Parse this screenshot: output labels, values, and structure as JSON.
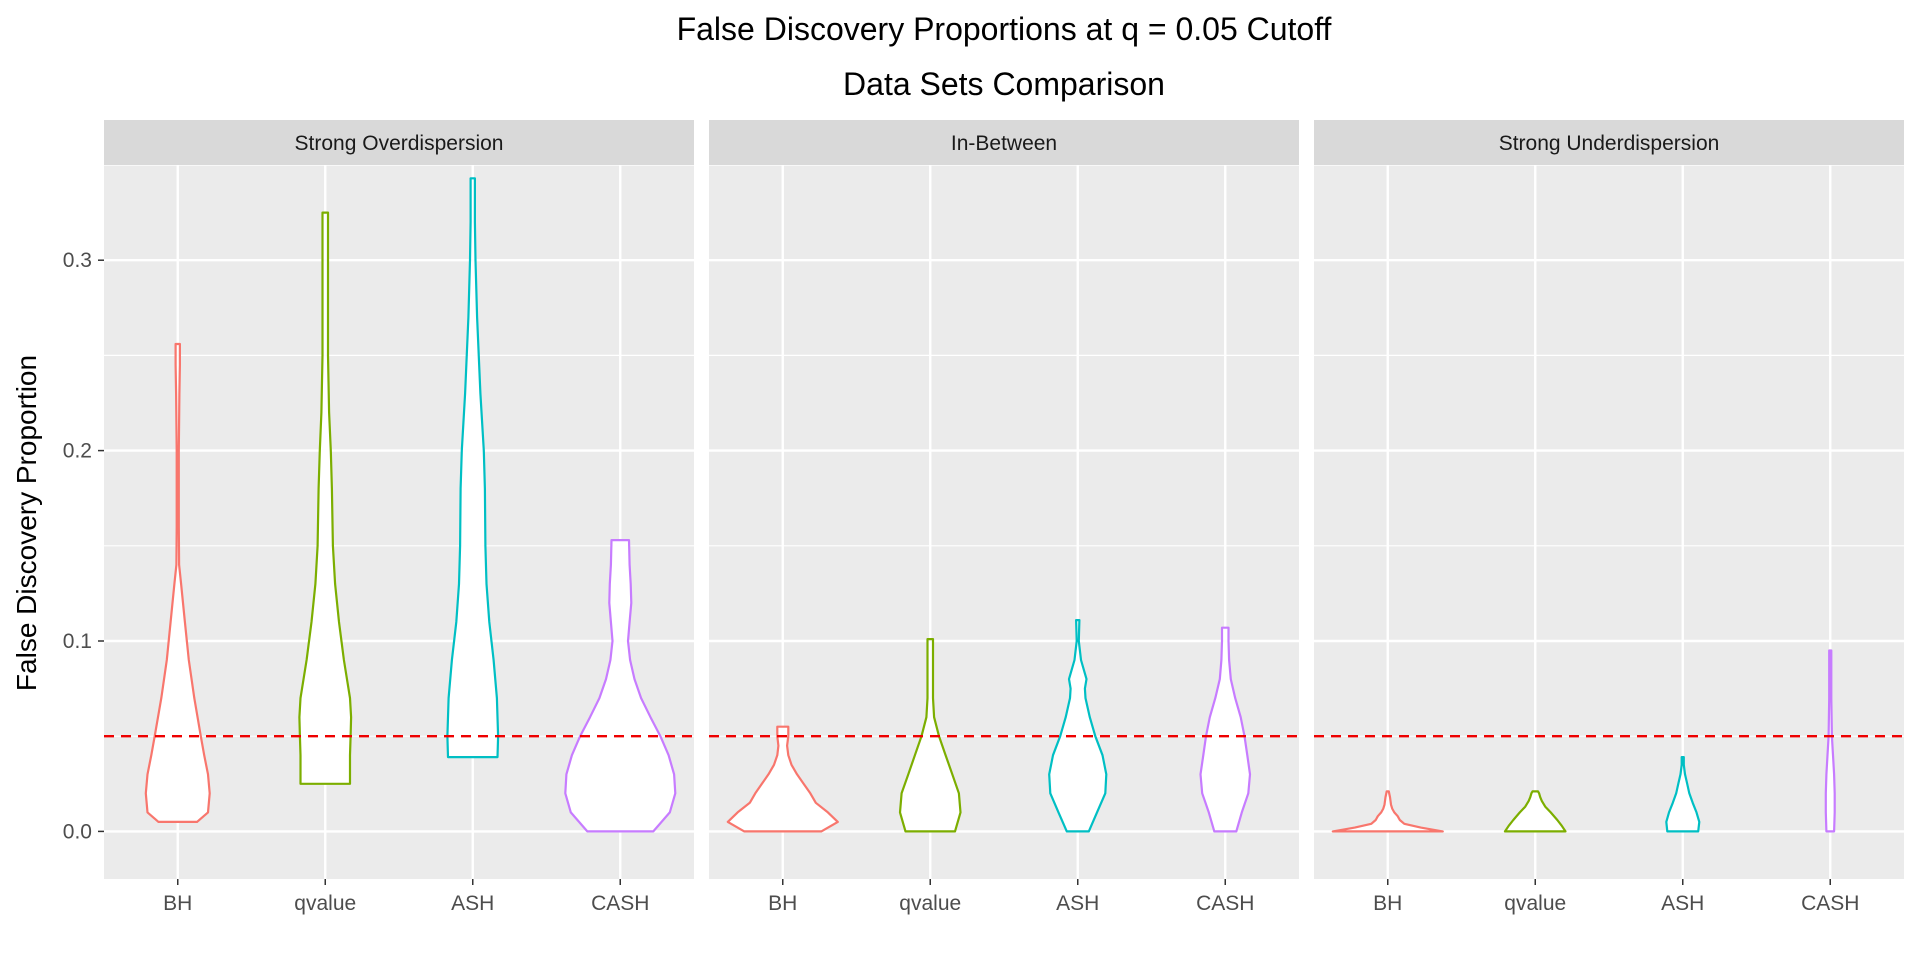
{
  "chart_data": {
    "type": "violin",
    "title": "False Discovery Proportions at q = 0.05 Cutoff",
    "subtitle": "Data Sets Comparison",
    "xlabel": "",
    "ylabel": "False Discovery Proportion",
    "ylim": [
      -0.025,
      0.35
    ],
    "y_ticks": [
      0.0,
      0.1,
      0.2,
      0.3
    ],
    "y_tick_labels": [
      "0.0",
      "0.1",
      "0.2",
      "0.3"
    ],
    "categories": [
      "BH",
      "qvalue",
      "ASH",
      "CASH"
    ],
    "reference_line": {
      "y": 0.05,
      "style": "dashed",
      "color": "#ee0000"
    },
    "grid": true,
    "legend": "none",
    "colors": {
      "BH": "#f8766d",
      "qvalue": "#7cae00",
      "ASH": "#00bfc4",
      "CASH": "#c77cff"
    },
    "panels": [
      {
        "name": "Strong Overdispersion",
        "series": [
          {
            "name": "BH",
            "min": 0.005,
            "max": 0.256,
            "profile": [
              [
                0.005,
                0.35
              ],
              [
                0.01,
                0.55
              ],
              [
                0.02,
                0.58
              ],
              [
                0.03,
                0.55
              ],
              [
                0.04,
                0.48
              ],
              [
                0.05,
                0.42
              ],
              [
                0.07,
                0.3
              ],
              [
                0.09,
                0.2
              ],
              [
                0.11,
                0.13
              ],
              [
                0.13,
                0.06
              ],
              [
                0.14,
                0.025
              ],
              [
                0.16,
                0.02
              ],
              [
                0.2,
                0.02
              ],
              [
                0.23,
                0.03
              ],
              [
                0.245,
                0.04
              ],
              [
                0.256,
                0.04
              ]
            ]
          },
          {
            "name": "qvalue",
            "min": 0.025,
            "max": 0.325,
            "profile": [
              [
                0.025,
                0.45
              ],
              [
                0.04,
                0.45
              ],
              [
                0.05,
                0.46
              ],
              [
                0.06,
                0.47
              ],
              [
                0.07,
                0.45
              ],
              [
                0.09,
                0.34
              ],
              [
                0.11,
                0.25
              ],
              [
                0.13,
                0.18
              ],
              [
                0.15,
                0.14
              ],
              [
                0.18,
                0.12
              ],
              [
                0.2,
                0.1
              ],
              [
                0.22,
                0.07
              ],
              [
                0.25,
                0.05
              ],
              [
                0.3,
                0.05
              ],
              [
                0.325,
                0.05
              ]
            ]
          },
          {
            "name": "ASH",
            "min": 0.039,
            "max": 0.343,
            "profile": [
              [
                0.039,
                0.45
              ],
              [
                0.05,
                0.46
              ],
              [
                0.07,
                0.44
              ],
              [
                0.09,
                0.38
              ],
              [
                0.11,
                0.3
              ],
              [
                0.13,
                0.25
              ],
              [
                0.15,
                0.23
              ],
              [
                0.18,
                0.22
              ],
              [
                0.2,
                0.2
              ],
              [
                0.23,
                0.14
              ],
              [
                0.27,
                0.08
              ],
              [
                0.3,
                0.05
              ],
              [
                0.32,
                0.04
              ],
              [
                0.343,
                0.04
              ]
            ]
          },
          {
            "name": "CASH",
            "min": 0.0,
            "max": 0.153,
            "profile": [
              [
                0.0,
                0.6
              ],
              [
                0.01,
                0.9
              ],
              [
                0.02,
                1.0
              ],
              [
                0.03,
                0.98
              ],
              [
                0.04,
                0.88
              ],
              [
                0.05,
                0.73
              ],
              [
                0.06,
                0.55
              ],
              [
                0.07,
                0.38
              ],
              [
                0.08,
                0.26
              ],
              [
                0.09,
                0.18
              ],
              [
                0.1,
                0.14
              ],
              [
                0.11,
                0.17
              ],
              [
                0.12,
                0.2
              ],
              [
                0.13,
                0.19
              ],
              [
                0.14,
                0.17
              ],
              [
                0.153,
                0.16
              ]
            ]
          }
        ]
      },
      {
        "name": "In-Between",
        "series": [
          {
            "name": "BH",
            "min": 0.0,
            "max": 0.055,
            "profile": [
              [
                0.0,
                0.7
              ],
              [
                0.005,
                1.0
              ],
              [
                0.01,
                0.82
              ],
              [
                0.015,
                0.6
              ],
              [
                0.02,
                0.5
              ],
              [
                0.025,
                0.38
              ],
              [
                0.03,
                0.26
              ],
              [
                0.035,
                0.16
              ],
              [
                0.04,
                0.1
              ],
              [
                0.045,
                0.08
              ],
              [
                0.05,
                0.1
              ],
              [
                0.055,
                0.1
              ]
            ]
          },
          {
            "name": "qvalue",
            "min": 0.0,
            "max": 0.101,
            "profile": [
              [
                0.0,
                0.45
              ],
              [
                0.01,
                0.55
              ],
              [
                0.02,
                0.52
              ],
              [
                0.03,
                0.4
              ],
              [
                0.04,
                0.28
              ],
              [
                0.05,
                0.16
              ],
              [
                0.06,
                0.07
              ],
              [
                0.07,
                0.05
              ],
              [
                0.08,
                0.05
              ],
              [
                0.09,
                0.05
              ],
              [
                0.101,
                0.05
              ]
            ]
          },
          {
            "name": "ASH",
            "min": 0.0,
            "max": 0.111,
            "profile": [
              [
                0.0,
                0.2
              ],
              [
                0.01,
                0.35
              ],
              [
                0.02,
                0.5
              ],
              [
                0.03,
                0.52
              ],
              [
                0.04,
                0.45
              ],
              [
                0.05,
                0.32
              ],
              [
                0.06,
                0.22
              ],
              [
                0.07,
                0.14
              ],
              [
                0.075,
                0.13
              ],
              [
                0.08,
                0.16
              ],
              [
                0.09,
                0.06
              ],
              [
                0.1,
                0.02
              ],
              [
                0.111,
                0.03
              ]
            ]
          },
          {
            "name": "CASH",
            "min": 0.0,
            "max": 0.107,
            "profile": [
              [
                0.0,
                0.2
              ],
              [
                0.01,
                0.3
              ],
              [
                0.02,
                0.42
              ],
              [
                0.03,
                0.45
              ],
              [
                0.04,
                0.4
              ],
              [
                0.05,
                0.35
              ],
              [
                0.06,
                0.28
              ],
              [
                0.07,
                0.18
              ],
              [
                0.08,
                0.1
              ],
              [
                0.09,
                0.07
              ],
              [
                0.1,
                0.06
              ],
              [
                0.107,
                0.06
              ]
            ]
          }
        ]
      },
      {
        "name": "Strong Underdispersion",
        "series": [
          {
            "name": "BH",
            "min": 0.0,
            "max": 0.021,
            "profile": [
              [
                0.0,
                1.0
              ],
              [
                0.002,
                0.6
              ],
              [
                0.004,
                0.3
              ],
              [
                0.006,
                0.22
              ],
              [
                0.008,
                0.18
              ],
              [
                0.01,
                0.12
              ],
              [
                0.012,
                0.08
              ],
              [
                0.014,
                0.06
              ],
              [
                0.016,
                0.05
              ],
              [
                0.018,
                0.04
              ],
              [
                0.021,
                0.02
              ]
            ]
          },
          {
            "name": "qvalue",
            "min": 0.0,
            "max": 0.021,
            "profile": [
              [
                0.0,
                0.55
              ],
              [
                0.003,
                0.48
              ],
              [
                0.006,
                0.4
              ],
              [
                0.01,
                0.28
              ],
              [
                0.013,
                0.18
              ],
              [
                0.016,
                0.12
              ],
              [
                0.018,
                0.09
              ],
              [
                0.02,
                0.07
              ],
              [
                0.021,
                0.05
              ]
            ]
          },
          {
            "name": "ASH",
            "min": 0.0,
            "max": 0.039,
            "profile": [
              [
                0.0,
                0.28
              ],
              [
                0.005,
                0.3
              ],
              [
                0.01,
                0.25
              ],
              [
                0.015,
                0.18
              ],
              [
                0.02,
                0.12
              ],
              [
                0.025,
                0.08
              ],
              [
                0.03,
                0.04
              ],
              [
                0.035,
                0.02
              ],
              [
                0.039,
                0.02
              ]
            ]
          },
          {
            "name": "CASH",
            "min": 0.0,
            "max": 0.095,
            "profile": [
              [
                0.0,
                0.07
              ],
              [
                0.01,
                0.08
              ],
              [
                0.02,
                0.08
              ],
              [
                0.03,
                0.07
              ],
              [
                0.04,
                0.05
              ],
              [
                0.05,
                0.03
              ],
              [
                0.06,
                0.025
              ],
              [
                0.07,
                0.02
              ],
              [
                0.08,
                0.02
              ],
              [
                0.095,
                0.02
              ]
            ]
          }
        ]
      }
    ]
  }
}
